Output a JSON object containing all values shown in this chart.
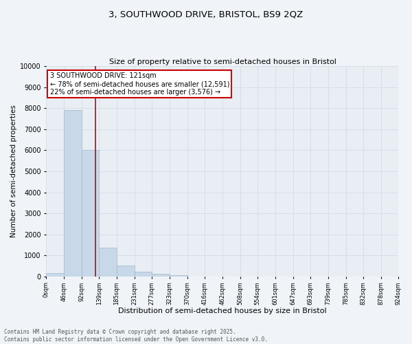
{
  "title_line1": "3, SOUTHWOOD DRIVE, BRISTOL, BS9 2QZ",
  "title_line2": "Size of property relative to semi-detached houses in Bristol",
  "xlabel": "Distribution of semi-detached houses by size in Bristol",
  "ylabel": "Number of semi-detached properties",
  "bar_values": [
    150,
    7900,
    6000,
    1350,
    500,
    220,
    130,
    40,
    5,
    2,
    1,
    0,
    0,
    0,
    0,
    0,
    0,
    0,
    0,
    0
  ],
  "bar_labels": [
    "0sqm",
    "46sqm",
    "92sqm",
    "139sqm",
    "185sqm",
    "231sqm",
    "277sqm",
    "323sqm",
    "370sqm",
    "416sqm",
    "462sqm",
    "508sqm",
    "554sqm",
    "601sqm",
    "647sqm",
    "693sqm",
    "739sqm",
    "785sqm",
    "832sqm",
    "878sqm",
    "924sqm"
  ],
  "bar_color": "#c8d8e8",
  "bar_edgecolor": "#a0b8cc",
  "grid_color": "#d0d8e0",
  "background_color": "#e8eef4",
  "fig_background_color": "#f0f4f8",
  "vline_x": 2.78,
  "vline_color": "#cc0000",
  "annotation_text": "3 SOUTHWOOD DRIVE: 121sqm\n← 78% of semi-detached houses are smaller (12,591)\n22% of semi-detached houses are larger (3,576) →",
  "annotation_box_color": "#cc0000",
  "ylim": [
    0,
    10000
  ],
  "yticks": [
    0,
    1000,
    2000,
    3000,
    4000,
    5000,
    6000,
    7000,
    8000,
    9000,
    10000
  ],
  "footer_line1": "Contains HM Land Registry data © Crown copyright and database right 2025.",
  "footer_line2": "Contains public sector information licensed under the Open Government Licence v3.0.",
  "title1_fontsize": 9.5,
  "title2_fontsize": 8.0,
  "ylabel_fontsize": 7.5,
  "xlabel_fontsize": 8.0,
  "ytick_fontsize": 7.0,
  "xtick_fontsize": 6.0,
  "annotation_fontsize": 7.0,
  "footer_fontsize": 5.5
}
